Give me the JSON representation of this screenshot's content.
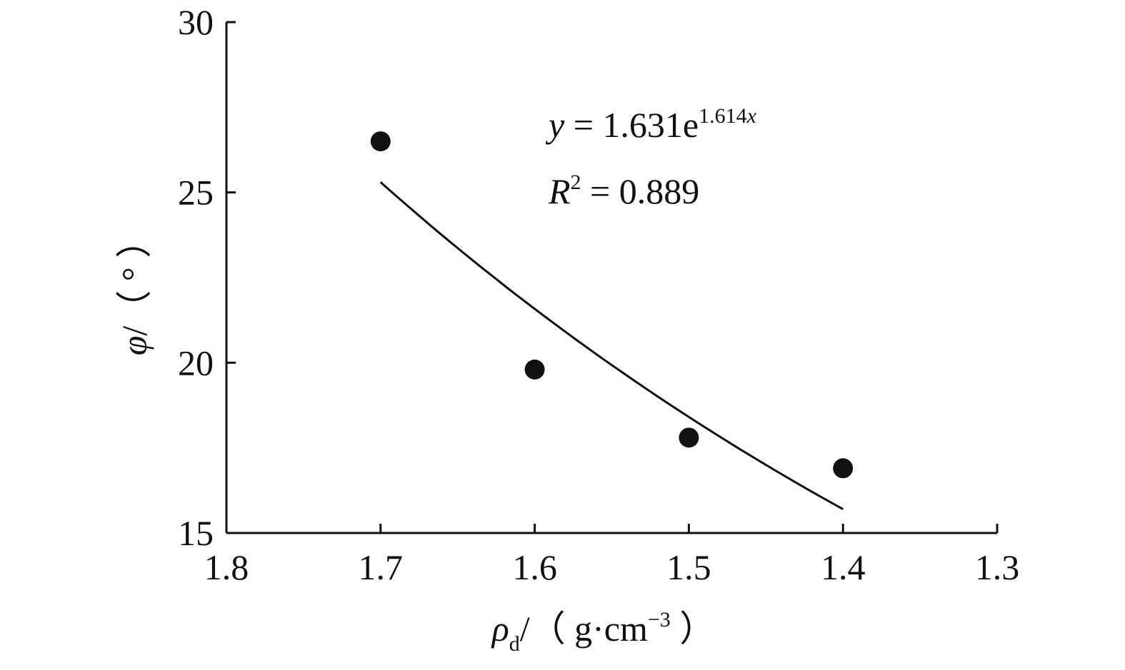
{
  "chart_data": {
    "type": "scatter",
    "x": [
      1.7,
      1.6,
      1.5,
      1.4
    ],
    "y": [
      26.5,
      19.8,
      17.8,
      16.9
    ],
    "xlim": [
      1.8,
      1.3
    ],
    "ylim": [
      15,
      30
    ],
    "x_reversed": true,
    "xticks": [
      "1.8",
      "1.7",
      "1.6",
      "1.5",
      "1.4",
      "1.3"
    ],
    "yticks": [
      "15",
      "20",
      "25",
      "30"
    ],
    "xlabel": {
      "symbol": "ρ",
      "subscript": "d",
      "unit_prefix": "/（ g·cm",
      "unit_exponent": "−3",
      "unit_suffix": " ）"
    },
    "ylabel": {
      "symbol": "φ",
      "unit": "/（ ° ）"
    },
    "fit": {
      "type": "exponential",
      "a": 1.631,
      "b": 1.614,
      "x_range": [
        1.7,
        1.4
      ],
      "equation_lhs": "y",
      "equation_mid": " = 1.631e",
      "equation_exp": "1.614",
      "equation_exp_var": "x",
      "r2_symbol": "R",
      "r2_sup": "2",
      "r2_text": " = 0.889"
    },
    "grid": false,
    "legend": "none",
    "marker_color": "#111111",
    "line_color": "#111111"
  }
}
